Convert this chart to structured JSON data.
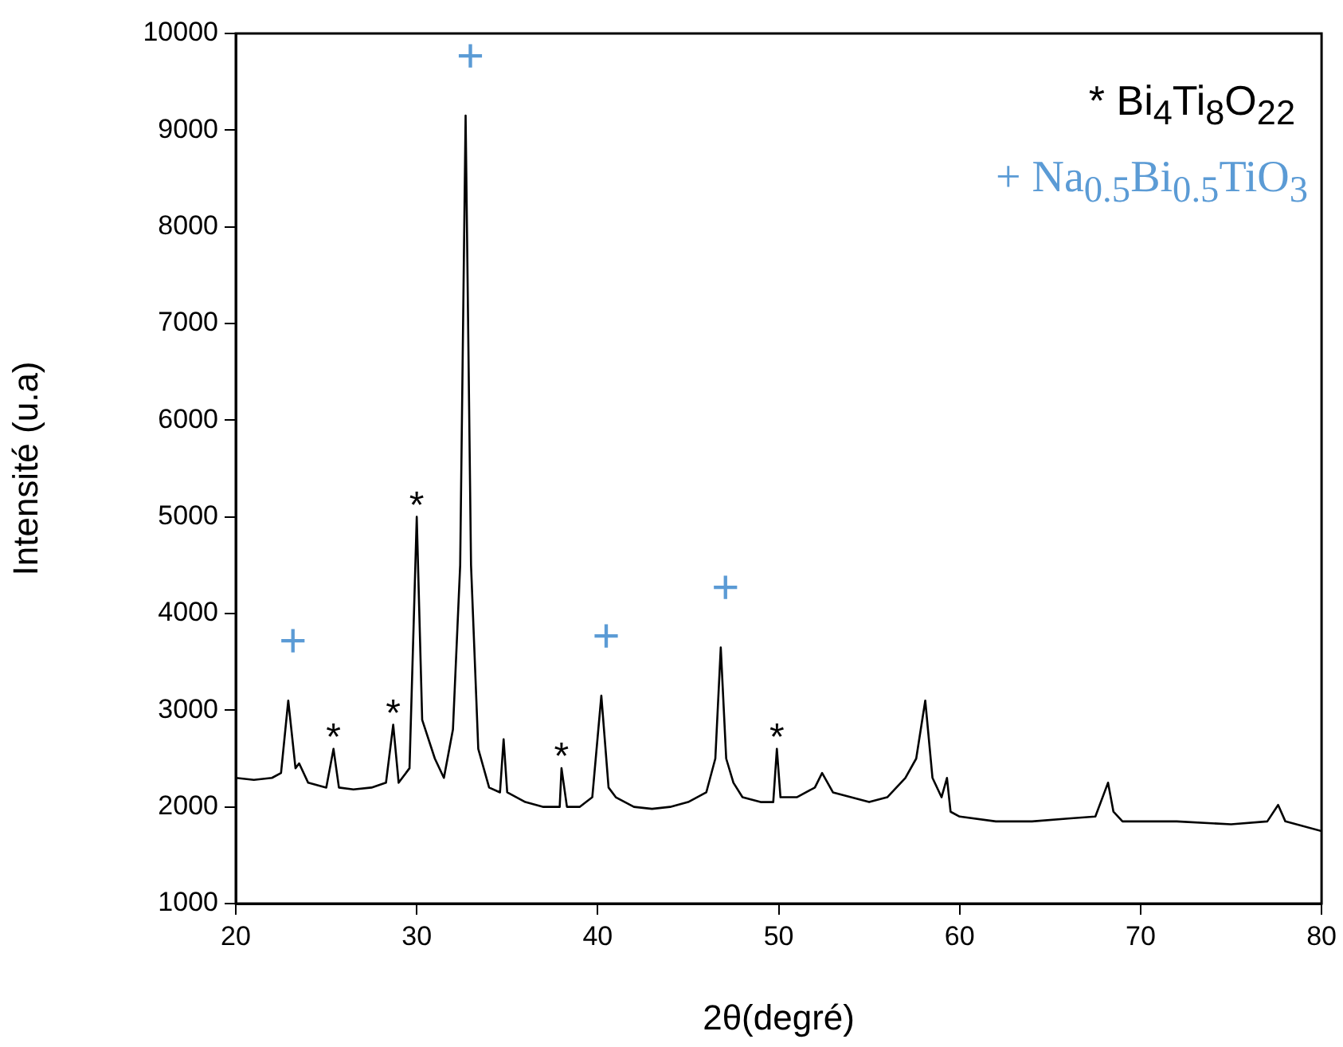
{
  "chart_data": {
    "type": "line",
    "xlabel": "2θ(degré)",
    "ylabel": "Intensité (u.a)",
    "x": [
      20,
      21,
      22,
      22.5,
      22.9,
      23.3,
      23.5,
      24,
      25,
      25.4,
      25.7,
      26.5,
      27.5,
      28.3,
      28.7,
      29,
      29.6,
      30,
      30.3,
      31,
      31.5,
      32,
      32.4,
      32.7,
      33,
      33.4,
      34,
      34.6,
      34.8,
      35,
      36,
      37,
      37.9,
      38,
      38.3,
      39,
      39.7,
      40.2,
      40.6,
      41,
      42,
      43,
      44,
      45,
      46,
      46.5,
      46.8,
      47.1,
      47.5,
      48,
      49,
      49.7,
      49.9,
      50.1,
      51,
      52,
      52.4,
      53,
      55,
      56,
      57,
      57.6,
      58.1,
      58.5,
      59,
      59.3,
      59.5,
      60,
      62,
      64,
      66,
      67.5,
      68.2,
      68.5,
      69,
      72,
      75,
      77,
      77.6,
      78,
      80
    ],
    "series": [
      {
        "color": "#000000",
        "values": [
          2300,
          2280,
          2300,
          2350,
          3100,
          2400,
          2450,
          2250,
          2200,
          2600,
          2200,
          2180,
          2200,
          2250,
          2850,
          2250,
          2400,
          5000,
          2900,
          2500,
          2300,
          2800,
          4500,
          9150,
          4500,
          2600,
          2200,
          2150,
          2700,
          2150,
          2050,
          2000,
          2000,
          2400,
          2000,
          2000,
          2100,
          3150,
          2200,
          2100,
          2000,
          1980,
          2000,
          2050,
          2150,
          2500,
          3650,
          2500,
          2250,
          2100,
          2050,
          2050,
          2600,
          2100,
          2100,
          2200,
          2350,
          2150,
          2050,
          2100,
          2300,
          2500,
          3100,
          2300,
          2100,
          2300,
          1950,
          1900,
          1850,
          1850,
          1880,
          1900,
          2250,
          1950,
          1850,
          1850,
          1820,
          1850,
          2020,
          1850,
          1750
        ]
      }
    ],
    "xlim": [
      20,
      80
    ],
    "xticks": [
      20,
      30,
      40,
      50,
      60,
      70,
      80
    ],
    "ylim": [
      1000,
      10000
    ],
    "yticks": [
      1000,
      2000,
      3000,
      4000,
      5000,
      6000,
      7000,
      8000,
      9000,
      10000
    ],
    "grid": false,
    "legend": false,
    "marker": "none",
    "line_style": "solid",
    "annotations": [
      {
        "text": "+",
        "x": 22.9,
        "y": 3100
      },
      {
        "text": "+",
        "x": 32.7,
        "y": 9150
      },
      {
        "text": "+",
        "x": 40.2,
        "y": 3150
      },
      {
        "text": "+",
        "x": 46.8,
        "y": 3650
      },
      {
        "text": "*",
        "x": 25.4,
        "y": 2600
      },
      {
        "text": "*",
        "x": 28.7,
        "y": 2850
      },
      {
        "text": "*",
        "x": 30,
        "y": 5000
      },
      {
        "text": "*",
        "x": 38,
        "y": 2400
      },
      {
        "text": "*",
        "x": 49.9,
        "y": 2600
      },
      "* Bi$_{4}$Ti$_{8}$O$_{22}$",
      "+ Na$_{0.5}$Bi$_{0.5}$TiO$_{3}$"
    ]
  }
}
